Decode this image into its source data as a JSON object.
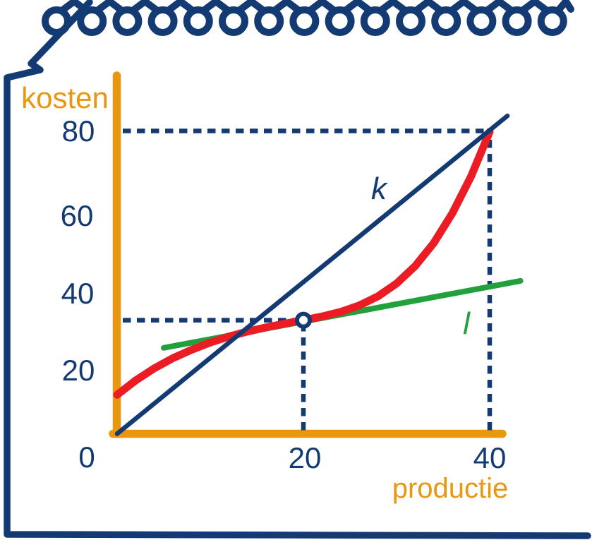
{
  "colors": {
    "navy": "#133A73",
    "orange": "#E8970F",
    "red": "#EC1C24",
    "green": "#21A03C",
    "background": "#FFFFFF"
  },
  "labels": {
    "y_axis_title": "kosten",
    "x_axis_title": "productie",
    "line_k": "k",
    "line_l": "l"
  },
  "axes": {
    "y_tick_labels": [
      "80",
      "60",
      "40",
      "20"
    ],
    "x_tick_labels": [
      "0",
      "20",
      "40"
    ]
  },
  "chart_data": {
    "type": "line",
    "title": "",
    "xlabel": "productie",
    "ylabel": "kosten",
    "xlim": [
      0,
      43.5
    ],
    "ylim": [
      0,
      87
    ],
    "x_ticks": [
      0,
      20,
      40
    ],
    "y_ticks": [
      20,
      40,
      60,
      80
    ],
    "grid": false,
    "legend_position": "none",
    "series": [
      {
        "name": "l",
        "role": "l-tangent-line",
        "color": "#21A03C",
        "stroke_width": 8,
        "points": [
          [
            5,
            22.7
          ],
          [
            43.3,
            40.4
          ]
        ]
      },
      {
        "name": "",
        "role": "total-cost-curve",
        "color": "#EC1C24",
        "stroke_width": 11,
        "points": [
          [
            0,
            10.3
          ],
          [
            2,
            14.1
          ],
          [
            4,
            17.3
          ],
          [
            6,
            20.0
          ],
          [
            8,
            22.2
          ],
          [
            10,
            24.1
          ],
          [
            12,
            25.7
          ],
          [
            14,
            27.0
          ],
          [
            16,
            28.1
          ],
          [
            18,
            29.1
          ],
          [
            20,
            30.0
          ],
          [
            22,
            31.0
          ],
          [
            24,
            32.2
          ],
          [
            26,
            33.9
          ],
          [
            28,
            36.3
          ],
          [
            30,
            39.7
          ],
          [
            32,
            44.3
          ],
          [
            34,
            50.4
          ],
          [
            36,
            58.3
          ],
          [
            38,
            68.0
          ],
          [
            40,
            79.8
          ]
        ]
      },
      {
        "name": "k",
        "role": "k-line",
        "color": "#133A73",
        "stroke_width": 6.5,
        "points": [
          [
            0,
            0
          ],
          [
            41.9,
            84
          ]
        ]
      }
    ],
    "tangent_point": {
      "x": 20,
      "y": 30
    },
    "dashed_guides": [
      {
        "from": [
          0,
          80
        ],
        "to": [
          40,
          80
        ]
      },
      {
        "from": [
          40,
          0
        ],
        "to": [
          40,
          80
        ]
      },
      {
        "from": [
          0,
          30
        ],
        "to": [
          20,
          30
        ]
      },
      {
        "from": [
          20,
          0
        ],
        "to": [
          20,
          30
        ]
      }
    ]
  }
}
